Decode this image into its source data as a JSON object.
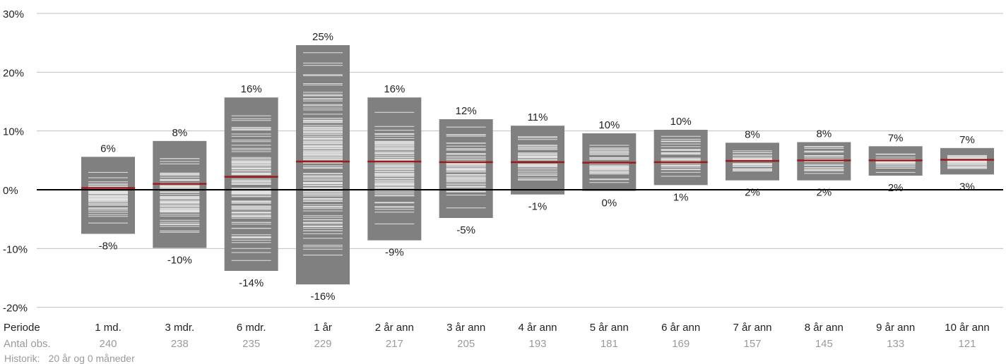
{
  "chart_data": {
    "type": "bar",
    "title": "",
    "ylabel": "",
    "ylim": [
      -20,
      30
    ],
    "yticks": [
      -20,
      -10,
      0,
      10,
      20,
      30
    ],
    "ytick_labels": [
      "-20%",
      "-10%",
      "0%",
      "10%",
      "20%",
      "30%"
    ],
    "grid": true,
    "row_labels": {
      "period": "Periode",
      "obs": "Antal obs."
    },
    "categories": [
      "1 md.",
      "3 mdr.",
      "6 mdr.",
      "1 år",
      "2 år ann",
      "3 år ann",
      "4 år ann",
      "5 år ann",
      "6 år ann",
      "7 år ann",
      "8 år ann",
      "9 år ann",
      "10 år ann"
    ],
    "observations": [
      "240",
      "238",
      "235",
      "229",
      "217",
      "205",
      "193",
      "181",
      "169",
      "157",
      "145",
      "133",
      "121"
    ],
    "max": [
      5.6,
      8.3,
      15.7,
      24.6,
      15.7,
      12.0,
      10.9,
      9.6,
      10.2,
      8.0,
      8.1,
      7.4,
      7.1
    ],
    "min": [
      -7.5,
      -9.9,
      -13.8,
      -16.1,
      -8.6,
      -4.8,
      -0.8,
      -0.2,
      0.8,
      1.6,
      1.6,
      2.4,
      2.6
    ],
    "median": [
      0.3,
      1.0,
      2.2,
      4.8,
      4.8,
      4.7,
      4.7,
      4.6,
      4.7,
      4.9,
      5.0,
      5.0,
      5.1
    ],
    "max_labels": [
      "6%",
      "8%",
      "16%",
      "25%",
      "16%",
      "12%",
      "11%",
      "10%",
      "10%",
      "8%",
      "8%",
      "7%",
      "7%"
    ],
    "min_labels": [
      "-8%",
      "-10%",
      "-14%",
      "-16%",
      "-9%",
      "-5%",
      "-1%",
      "0%",
      "1%",
      "2%",
      "2%",
      "2%",
      "3%"
    ],
    "colors": {
      "range": "#808080",
      "observation_line": "#e2e2e2",
      "median": "#9b1b1b",
      "zero_line": "#000000",
      "grid": "#bfbfbf"
    }
  },
  "footer": {
    "label": "Historik:",
    "value": "20 år og 0 måneder"
  }
}
